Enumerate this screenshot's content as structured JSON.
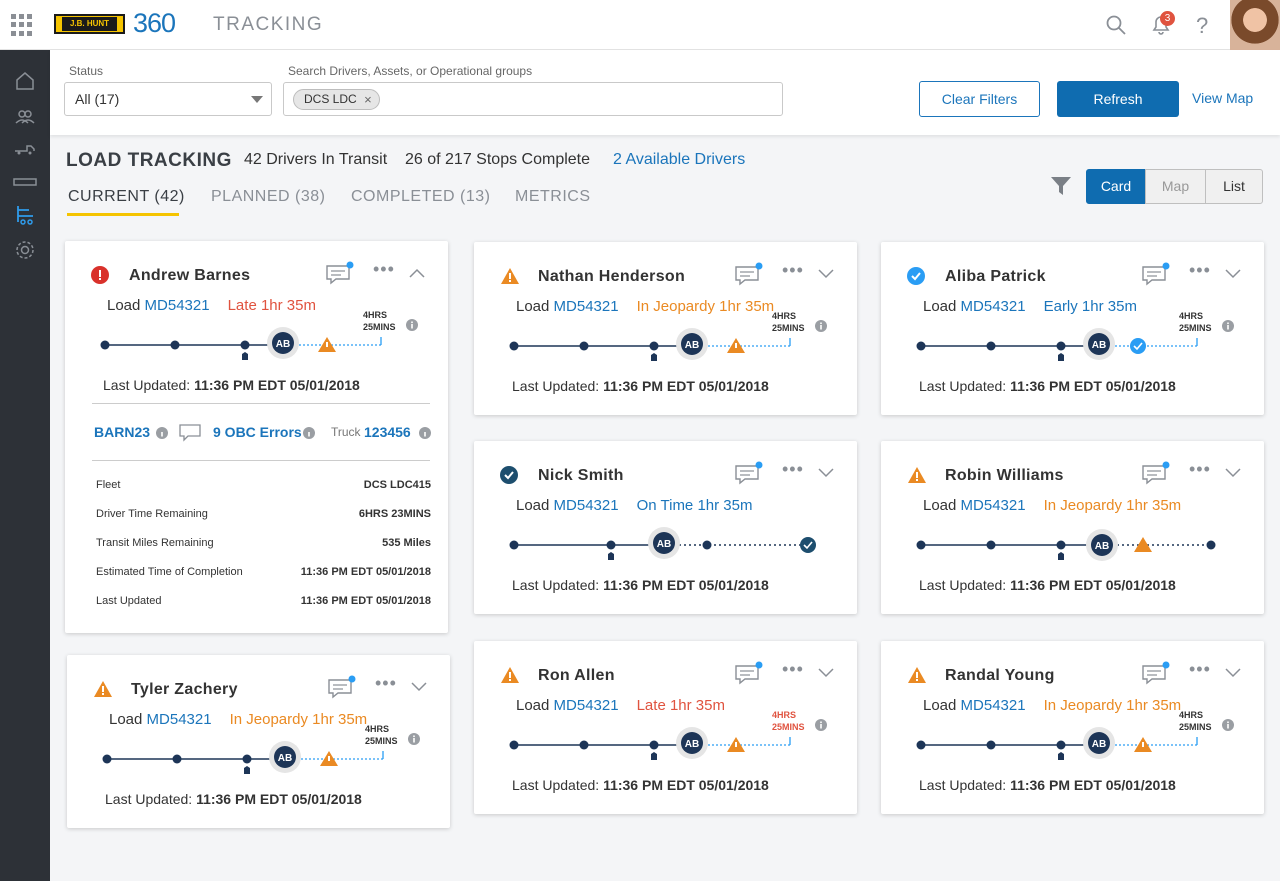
{
  "app": {
    "brand": "J.B. HUNT",
    "product": "360",
    "title": "TRACKING",
    "notif_count": "3"
  },
  "filters": {
    "status_label": "Status",
    "status_value": "All (17)",
    "search_label": "Search Drivers, Assets, or Operational groups",
    "chip": "DCS LDC",
    "clear": "Clear Filters",
    "refresh": "Refresh",
    "viewmap": "View Map"
  },
  "summary": {
    "title": "LOAD TRACKING",
    "in_transit": "42 Drivers In Transit",
    "stops": "26 of 217 Stops Complete",
    "available": "2 Available Drivers"
  },
  "tabs": [
    "CURRENT (42)",
    "PLANNED (38)",
    "COMPLETED (13)",
    "METRICS"
  ],
  "views": [
    "Card",
    "Map",
    "List"
  ],
  "cards": [
    {
      "name": "Andrew Barnes",
      "load_prefix": "Load",
      "load_id": "MD54321",
      "status": "Late 1hr 35m",
      "hrs": "4HRS\n25MINS",
      "last_updated_label": "Last Updated:",
      "last_updated": "11:36 PM EDT 05/01/2018",
      "ab": "AB",
      "expanded": {
        "driver_code": "BARN23",
        "obc": "9 OBC Errors",
        "truck_label": "Truck",
        "truck": "123456",
        "rows": [
          {
            "label": "Fleet",
            "value": "DCS LDC415"
          },
          {
            "label": "Driver Time Remaining",
            "value": "6HRS 23MINS"
          },
          {
            "label": "Transit Miles Remaining",
            "value": "535 Miles"
          },
          {
            "label": "Estimated Time of Completion",
            "value": "11:36 PM EDT 05/01/2018"
          },
          {
            "label": "Last Updated",
            "value": "11:36 PM EDT 05/01/2018"
          }
        ]
      }
    },
    {
      "name": "Tyler Zachery",
      "load_prefix": "Load",
      "load_id": "MD54321",
      "status": "In Jeopardy 1hr 35m",
      "hrs": "4HRS\n25MINS",
      "last_updated_label": "Last Updated:",
      "last_updated": "11:36 PM EDT 05/01/2018",
      "ab": "AB"
    },
    {
      "name": "Nathan Henderson",
      "load_prefix": "Load",
      "load_id": "MD54321",
      "status": "In Jeopardy 1hr 35m",
      "hrs": "4HRS\n25MINS",
      "last_updated_label": "Last Updated:",
      "last_updated": "11:36 PM EDT 05/01/2018",
      "ab": "AB"
    },
    {
      "name": "Nick Smith",
      "load_prefix": "Load",
      "load_id": "MD54321",
      "status": "On Time 1hr 35m",
      "hrs": "",
      "last_updated_label": "Last Updated:",
      "last_updated": "11:36 PM EDT 05/01/2018",
      "ab": "AB"
    },
    {
      "name": "Ron Allen",
      "load_prefix": "Load",
      "load_id": "MD54321",
      "status": "Late 1hr 35m",
      "hrs": "4HRS\n25MINS",
      "last_updated_label": "Last Updated:",
      "last_updated": "11:36 PM EDT 05/01/2018",
      "ab": "AB"
    },
    {
      "name": "Aliba Patrick",
      "load_prefix": "Load",
      "load_id": "MD54321",
      "status": "Early 1hr 35m",
      "hrs": "4HRS\n25MINS",
      "last_updated_label": "Last Updated:",
      "last_updated": "11:36 PM EDT 05/01/2018",
      "ab": "AB"
    },
    {
      "name": "Robin Williams",
      "load_prefix": "Load",
      "load_id": "MD54321",
      "status": "In Jeopardy 1hr 35m",
      "hrs": "",
      "last_updated_label": "Last Updated:",
      "last_updated": "11:36 PM EDT 05/01/2018",
      "ab": "AB"
    },
    {
      "name": "Randal Young",
      "load_prefix": "Load",
      "load_id": "MD54321",
      "status": "In Jeopardy 1hr 35m",
      "hrs": "4HRS\n25MINS",
      "last_updated_label": "Last Updated:",
      "last_updated": "11:36 PM EDT 05/01/2018",
      "ab": "AB"
    }
  ],
  "colors": {
    "blue": "#1b75bb",
    "red": "#e0533f",
    "orange": "#ea8a23",
    "yellow": "#f5c400",
    "navy": "#1d3557"
  }
}
